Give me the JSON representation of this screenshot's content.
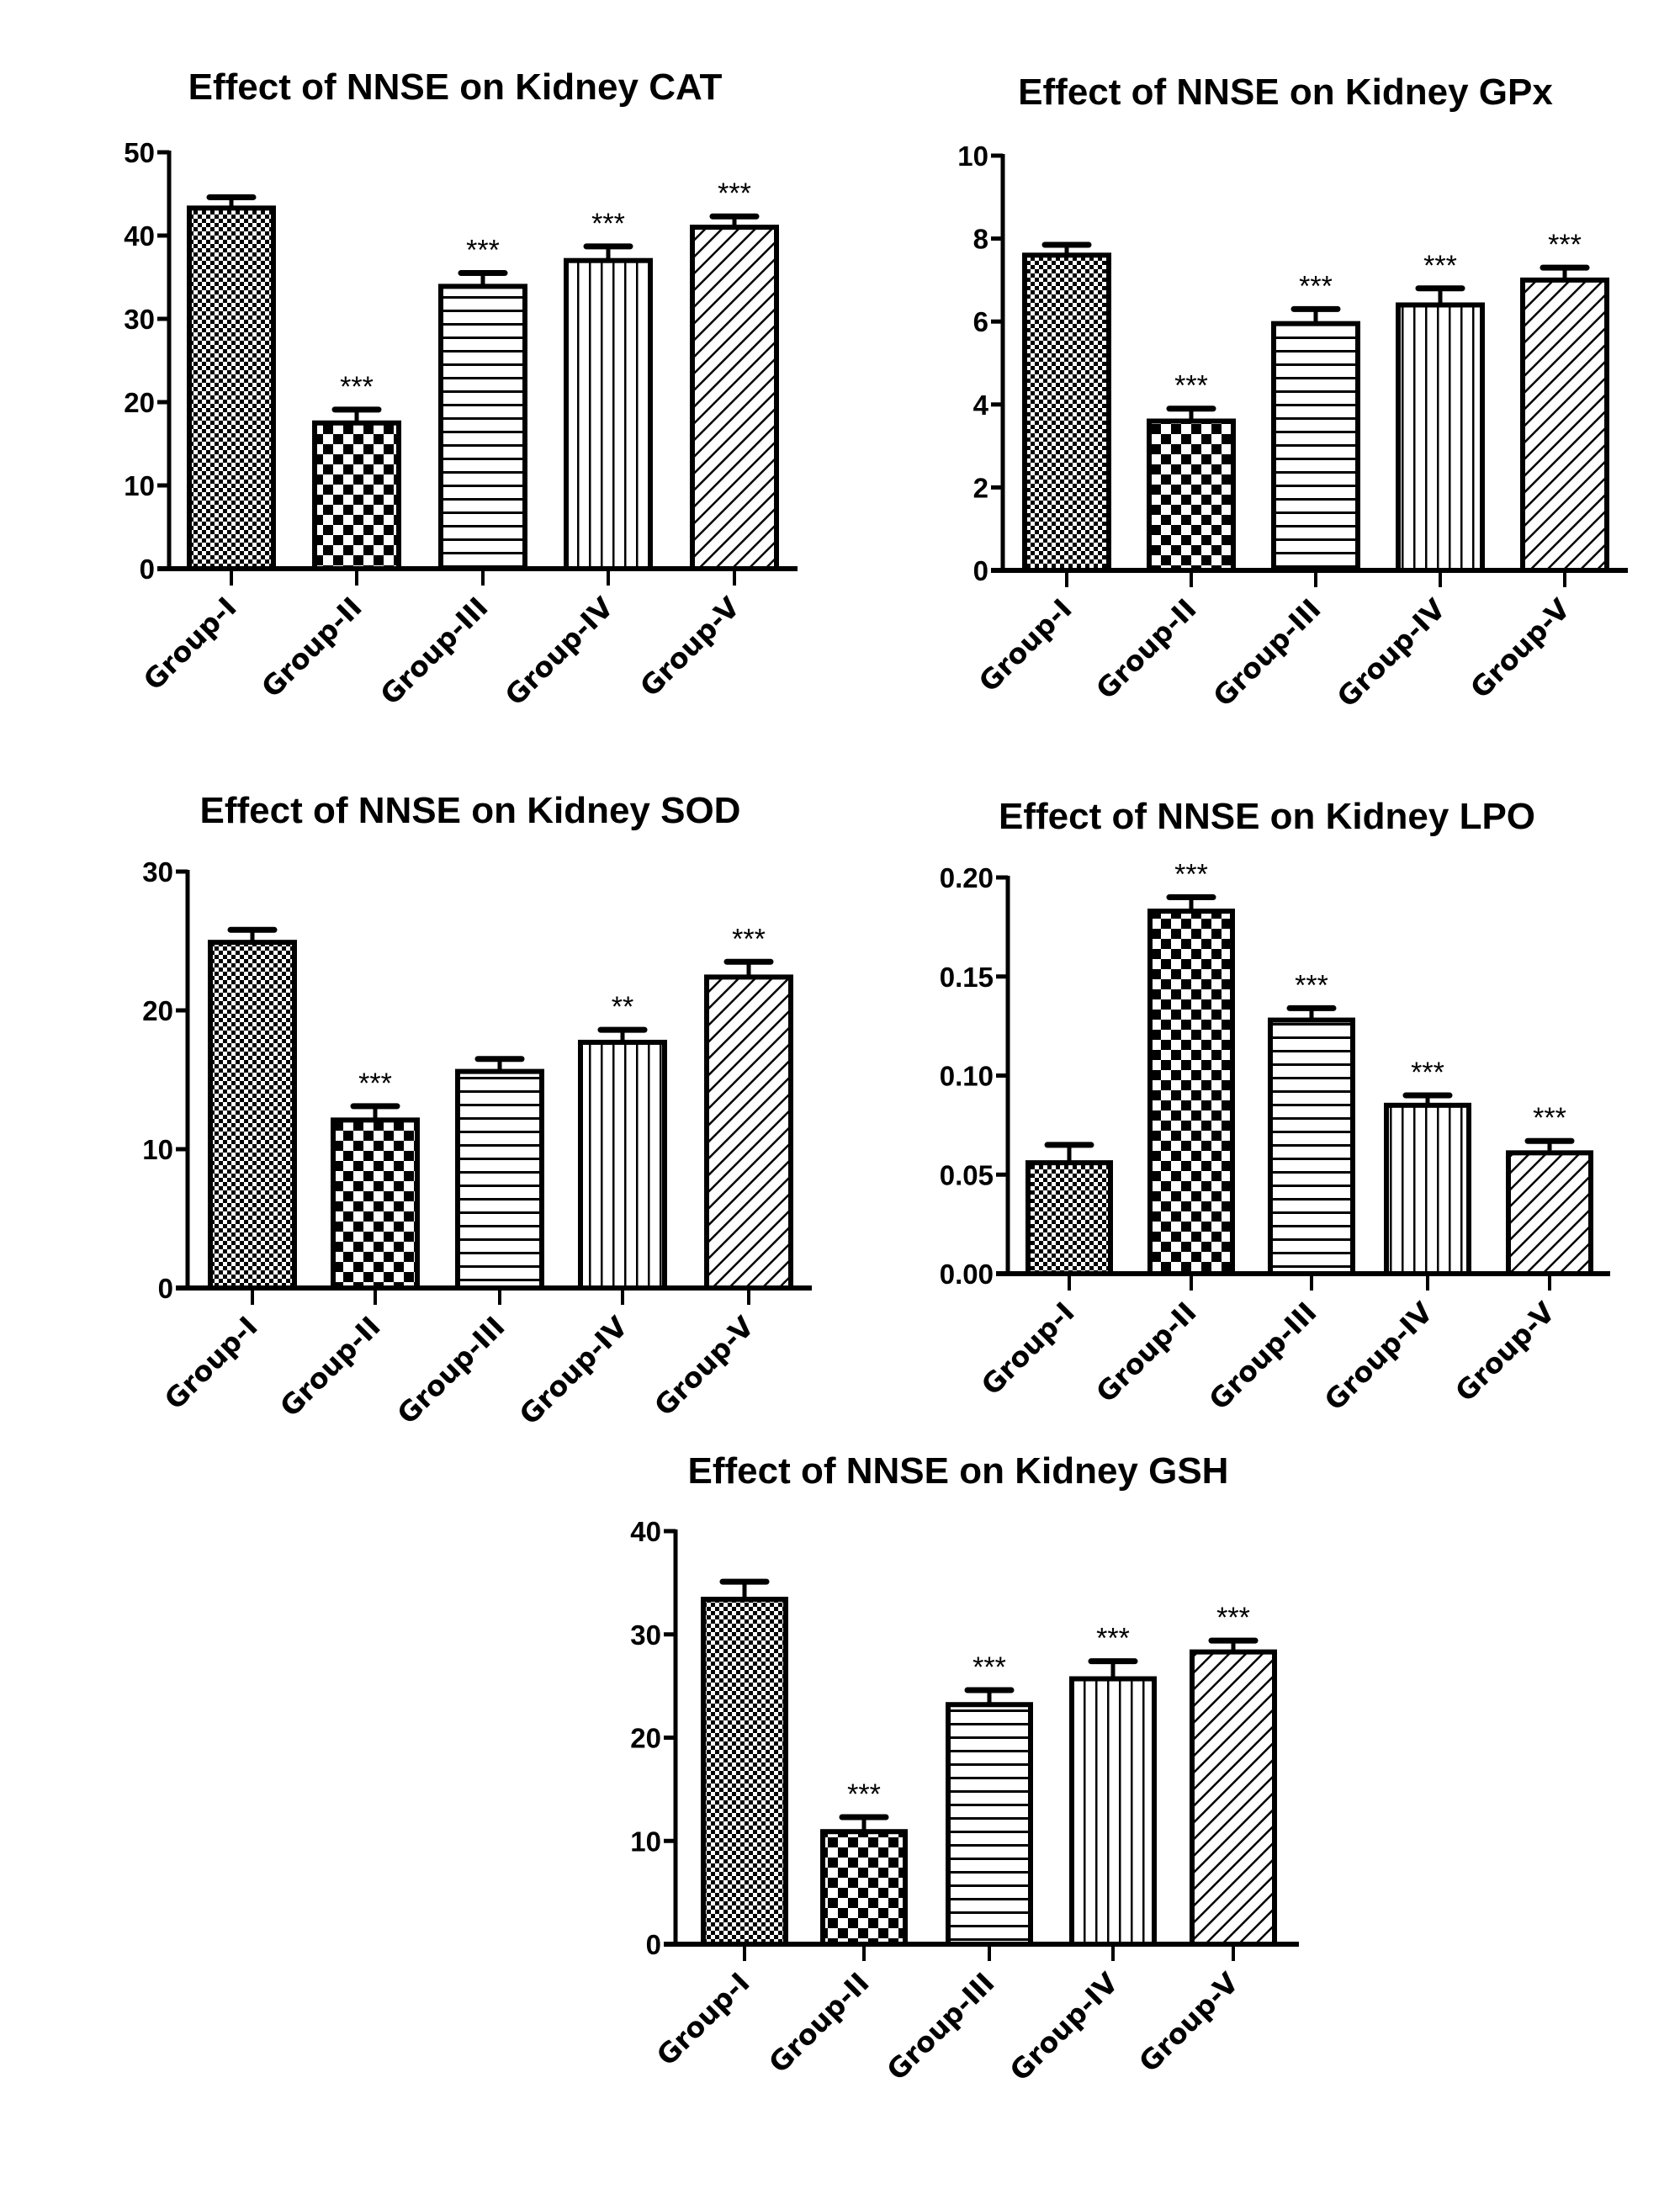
{
  "figure": {
    "panel_count": 5
  },
  "chart_data": [
    {
      "id": "cat",
      "type": "bar",
      "title": "Effect of NNSE on Kidney CAT",
      "xlabel": "",
      "ylabel": "",
      "categories": [
        "Group-I",
        "Group-II",
        "Group-III",
        "Group-IV",
        "Group-V"
      ],
      "values": [
        43.3,
        17.5,
        33.9,
        37.0,
        41.0
      ],
      "error_upper": [
        44.6,
        19.1,
        35.5,
        38.7,
        42.3
      ],
      "significance": [
        "",
        "***",
        "***",
        "***",
        "***"
      ],
      "patterns": [
        "fine-check",
        "coarse-check",
        "horizontal-lines",
        "vertical-lines",
        "diagonal-lines"
      ],
      "ylim": [
        0,
        50
      ],
      "yticks": [
        0,
        10,
        20,
        30,
        40,
        50
      ],
      "ytick_labels": [
        "0",
        "10",
        "20",
        "30",
        "40",
        "50"
      ],
      "grid": false,
      "legend": "none"
    },
    {
      "id": "gpx",
      "type": "bar",
      "title": "Effect of NNSE on Kidney GPx",
      "xlabel": "",
      "ylabel": "",
      "categories": [
        "Group-I",
        "Group-II",
        "Group-III",
        "Group-IV",
        "Group-V"
      ],
      "values": [
        7.6,
        3.6,
        5.95,
        6.4,
        7.0
      ],
      "error_upper": [
        7.85,
        3.9,
        6.3,
        6.8,
        7.3
      ],
      "significance": [
        "",
        "***",
        "***",
        "***",
        "***"
      ],
      "patterns": [
        "fine-check",
        "coarse-check",
        "horizontal-lines",
        "vertical-lines",
        "diagonal-lines"
      ],
      "ylim": [
        0,
        10
      ],
      "yticks": [
        0,
        2,
        4,
        6,
        8,
        10
      ],
      "ytick_labels": [
        "0",
        "2",
        "4",
        "6",
        "8",
        "10"
      ],
      "grid": false,
      "legend": "none"
    },
    {
      "id": "sod",
      "type": "bar",
      "title": "Effect of NNSE on Kidney SOD",
      "xlabel": "",
      "ylabel": "",
      "categories": [
        "Group-I",
        "Group-II",
        "Group-III",
        "Group-IV",
        "Group-V"
      ],
      "values": [
        24.9,
        12.1,
        15.6,
        17.7,
        22.4
      ],
      "error_upper": [
        25.8,
        13.1,
        16.5,
        18.6,
        23.5
      ],
      "significance": [
        "",
        "***",
        "",
        "**",
        "***"
      ],
      "patterns": [
        "fine-check",
        "coarse-check",
        "horizontal-lines",
        "vertical-lines",
        "diagonal-lines"
      ],
      "ylim": [
        0,
        30
      ],
      "yticks": [
        0,
        10,
        20,
        30
      ],
      "ytick_labels": [
        "0",
        "10",
        "20",
        "30"
      ],
      "grid": false,
      "legend": "none"
    },
    {
      "id": "lpo",
      "type": "bar",
      "title": "Effect of NNSE on Kidney LPO",
      "xlabel": "",
      "ylabel": "",
      "categories": [
        "Group-I",
        "Group-II",
        "Group-III",
        "Group-IV",
        "Group-V"
      ],
      "values": [
        0.056,
        0.183,
        0.128,
        0.085,
        0.061
      ],
      "error_upper": [
        0.065,
        0.19,
        0.134,
        0.09,
        0.067
      ],
      "significance": [
        "",
        "***",
        "***",
        "***",
        "***"
      ],
      "patterns": [
        "fine-check",
        "coarse-check",
        "horizontal-lines",
        "vertical-lines",
        "diagonal-lines"
      ],
      "ylim": [
        0,
        0.2
      ],
      "yticks": [
        0,
        0.05,
        0.1,
        0.15,
        0.2
      ],
      "ytick_labels": [
        "0.00",
        "0.05",
        "0.10",
        "0.15",
        "0.20"
      ],
      "grid": false,
      "legend": "none"
    },
    {
      "id": "gsh",
      "type": "bar",
      "title": "Effect of NNSE on Kidney GSH",
      "xlabel": "",
      "ylabel": "",
      "categories": [
        "Group-I",
        "Group-II",
        "Group-III",
        "Group-IV",
        "Group-V"
      ],
      "values": [
        33.4,
        10.9,
        23.2,
        25.7,
        28.3
      ],
      "error_upper": [
        35.1,
        12.3,
        24.6,
        27.4,
        29.4
      ],
      "significance": [
        "",
        "***",
        "***",
        "***",
        "***"
      ],
      "patterns": [
        "fine-check",
        "coarse-check",
        "horizontal-lines",
        "vertical-lines",
        "diagonal-lines"
      ],
      "ylim": [
        0,
        40
      ],
      "yticks": [
        0,
        10,
        20,
        30,
        40
      ],
      "ytick_labels": [
        "0",
        "10",
        "20",
        "30",
        "40"
      ],
      "grid": false,
      "legend": "none"
    }
  ]
}
